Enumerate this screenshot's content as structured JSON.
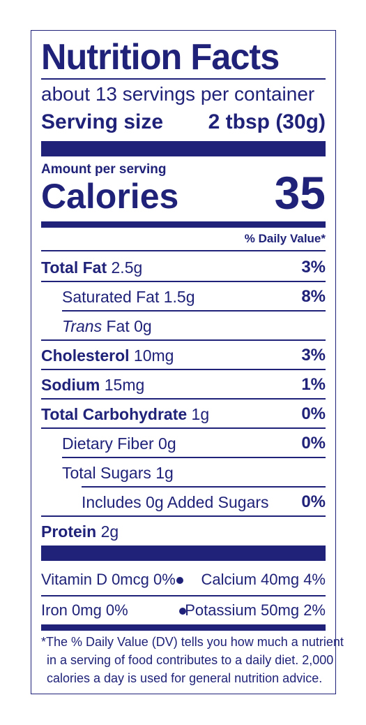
{
  "label": {
    "title": "Nutrition Facts",
    "servings_per_container": "about 13 servings per container",
    "serving_size_label": "Serving size",
    "serving_size_value": "2 tbsp (30g)",
    "amount_per_serving": "Amount per serving",
    "calories_label": "Calories",
    "calories_value": "35",
    "daily_value_header": "% Daily Value*",
    "nutrients": [
      {
        "name": "Total Fat",
        "amount": "2.5g",
        "dv": "3%"
      },
      {
        "name": "Saturated Fat",
        "amount": "1.5g",
        "dv": "8%"
      },
      {
        "name_italic": "Trans",
        "name": "Fat",
        "amount": "0g",
        "dv": ""
      },
      {
        "name": "Cholesterol",
        "amount": "10mg",
        "dv": "3%"
      },
      {
        "name": "Sodium",
        "amount": "15mg",
        "dv": "1%"
      },
      {
        "name": "Total Carbohydrate",
        "amount": "1g",
        "dv": "0%"
      },
      {
        "name": "Dietary Fiber",
        "amount": "0g",
        "dv": "0%"
      },
      {
        "name": "Total Sugars",
        "amount": "1g",
        "dv": ""
      },
      {
        "name": "Includes 0g Added Sugars",
        "amount": "",
        "dv": "0%"
      },
      {
        "name": "Protein",
        "amount": "2g",
        "dv": ""
      }
    ],
    "vitamins": [
      {
        "left": "Vitamin D 0mcg 0%",
        "right": "Calcium 40mg 4%"
      },
      {
        "left": "Iron 0mg 0%",
        "right": "Potassium 50mg 2%"
      }
    ],
    "footnote": [
      "*The % Daily Value (DV) tells you how much a nutrient",
      "in a serving of food contributes to a daily diet. 2,000",
      "calories a day is used for general nutrition advice."
    ],
    "color": "#1f2278"
  }
}
